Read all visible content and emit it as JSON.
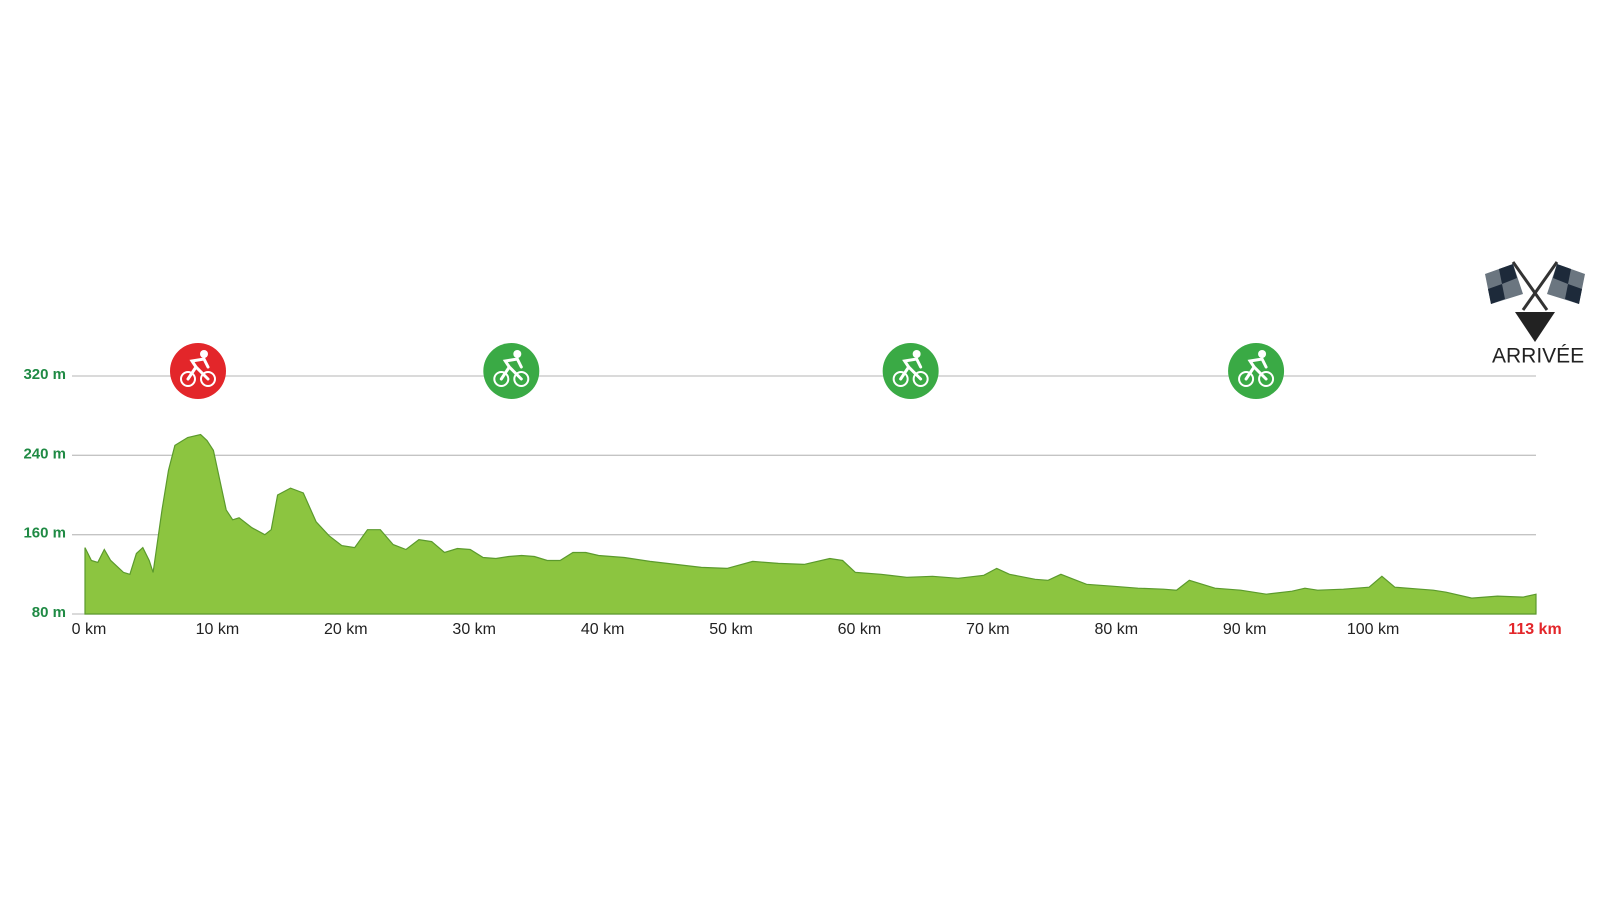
{
  "chart_data": {
    "type": "area",
    "x": [
      0,
      0.5,
      1,
      1.5,
      2,
      3,
      3.5,
      4,
      4.5,
      5,
      5.3,
      6,
      6.5,
      7,
      8,
      9,
      9.5,
      10,
      11,
      11.5,
      12,
      13,
      14,
      14.5,
      15,
      16,
      17,
      18,
      19,
      20,
      21,
      22,
      23,
      24,
      25,
      26,
      27,
      28,
      29,
      30,
      31,
      32,
      33,
      34,
      35,
      36,
      37,
      38,
      39,
      40,
      42,
      44,
      46,
      48,
      50,
      52,
      54,
      56,
      58,
      59,
      60,
      62,
      64,
      66,
      68,
      70,
      71,
      72,
      74,
      75,
      76,
      77,
      78,
      80,
      82,
      84,
      85,
      86,
      88,
      90,
      92,
      94,
      95,
      96,
      98,
      100,
      101,
      102,
      104,
      105,
      106,
      108,
      110,
      112,
      113
    ],
    "series": [
      {
        "color": "#8cc540",
        "line_color": "#5b9a2c",
        "values": [
          147,
          134,
          132,
          145,
          134,
          122,
          120,
          141,
          147,
          134,
          122,
          185,
          225,
          250,
          258,
          261,
          255,
          245,
          185,
          175,
          177,
          167,
          160,
          165,
          200,
          207,
          202,
          173,
          159,
          149,
          147,
          165,
          165,
          150,
          145,
          155,
          153,
          142,
          146,
          145,
          137,
          136,
          138,
          139,
          138,
          134,
          134,
          142,
          142,
          139,
          137,
          133,
          130,
          127,
          126,
          133,
          131,
          130,
          136,
          134,
          122,
          120,
          117,
          118,
          116,
          119,
          126,
          120,
          115,
          114,
          120,
          115,
          110,
          108,
          106,
          105,
          104,
          114,
          106,
          104,
          100,
          103,
          106,
          104,
          105,
          107,
          118,
          107,
          105,
          104,
          102,
          96,
          98,
          97,
          100
        ]
      }
    ],
    "xlim": [
      0,
      113
    ],
    "ylim": [
      80,
      320
    ],
    "xticks": [
      {
        "value": 0,
        "label": "0 km"
      },
      {
        "value": 10,
        "label": "10 km"
      },
      {
        "value": 20,
        "label": "20 km"
      },
      {
        "value": 30,
        "label": "30 km"
      },
      {
        "value": 40,
        "label": "40 km"
      },
      {
        "value": 50,
        "label": "50 km"
      },
      {
        "value": 60,
        "label": "60 km"
      },
      {
        "value": 70,
        "label": "70 km"
      },
      {
        "value": 80,
        "label": "80 km"
      },
      {
        "value": 90,
        "label": "90 km"
      },
      {
        "value": 100,
        "label": "100 km"
      },
      {
        "value": 113,
        "label": "113 km"
      }
    ],
    "yticks": [
      {
        "value": 80,
        "label": "80 m"
      },
      {
        "value": 160,
        "label": "160 m"
      },
      {
        "value": 240,
        "label": "240 m"
      },
      {
        "value": 320,
        "label": "320 m"
      }
    ],
    "grid": true,
    "finish_color": "#e3262a",
    "markers": [
      {
        "x": 8.8,
        "color": "#e3262a"
      },
      {
        "x": 33.2,
        "color": "#3aaa45"
      },
      {
        "x": 64.3,
        "color": "#3aaa45"
      },
      {
        "x": 91.2,
        "color": "#3aaa45"
      }
    ],
    "finish_label": "ARRIVÉE"
  }
}
